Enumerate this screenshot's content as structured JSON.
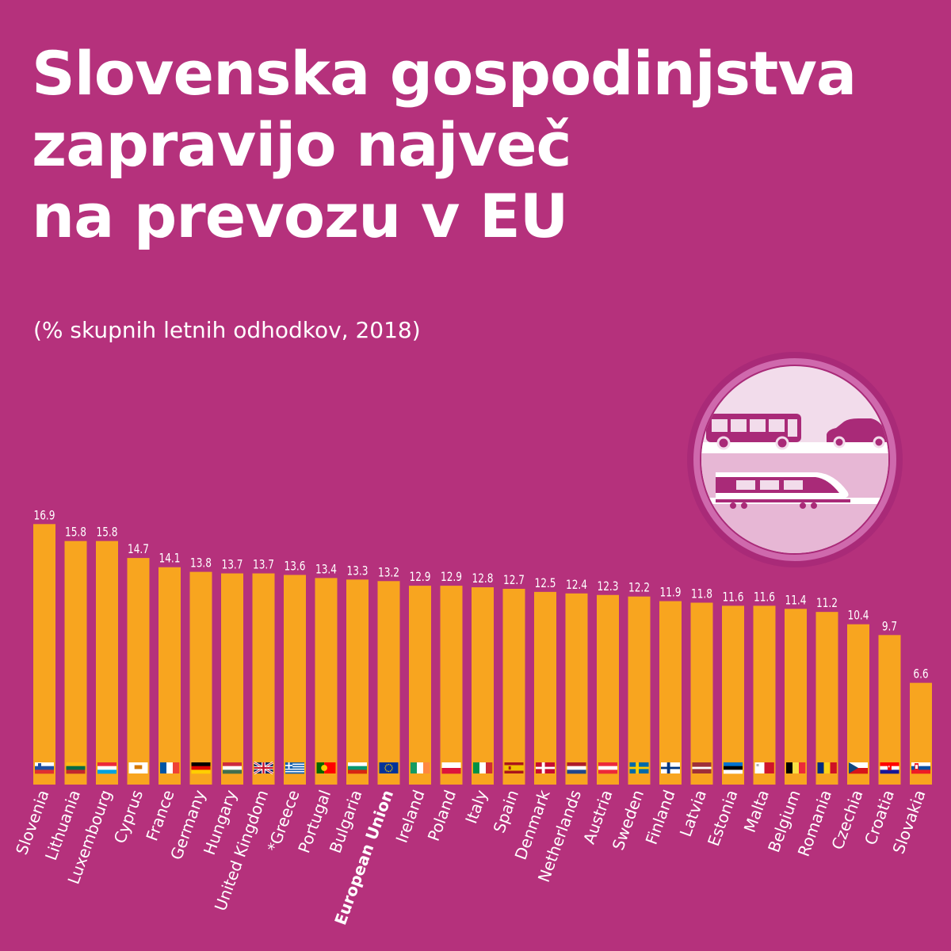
{
  "title_lines": [
    "Slovenska gospodinjstva",
    "zapravijo največ",
    "na prevozu v EU"
  ],
  "subtitle": "(% skupnih letnih odhodkov, 2018)",
  "colors": {
    "background": "#b5317c",
    "bar": "#f8a51f",
    "text": "#ffffff",
    "icon_light": "#f2dceb",
    "icon_mid": "#e7b7d5",
    "icon_dark": "#a92a78"
  },
  "icon": "bus-car-train-icon",
  "chart_data": {
    "type": "bar",
    "title": "Slovenska gospodinjstva zapravijo največ na prevozu v EU",
    "subtitle": "(% skupnih letnih odhodkov, 2018)",
    "xlabel": "",
    "ylabel": "",
    "ylim": [
      0,
      20
    ],
    "grid": false,
    "highlight": "European Union",
    "categories": [
      "Slovenia",
      "Lithuania",
      "Luxembourg",
      "Cyprus",
      "France",
      "Germany",
      "Hungary",
      "United Kingdom",
      "*Greece",
      "Portugal",
      "Bulgaria",
      "European Union",
      "Ireland",
      "Poland",
      "Italy",
      "Spain",
      "Denmark",
      "Netherlands",
      "Austria",
      "Sweden",
      "Finland",
      "Latvia",
      "Estonia",
      "Malta",
      "Belgium",
      "Romania",
      "Czechia",
      "Croatia",
      "Slovakia"
    ],
    "value_labels": [
      "16.9",
      "15.8",
      "15.8",
      "14.7",
      "14.1",
      "13.8",
      "13.7",
      "13.7",
      "13.6",
      "13.4",
      "13.3",
      "13.2",
      "12.9",
      "12.9",
      "12.8",
      "12.7",
      "12.5",
      "12.4",
      "12.3",
      "12.2",
      "11.9",
      "11.8",
      "11.6",
      "11.6",
      "11.4",
      "11.2",
      "10.4",
      "9.7",
      "6.6"
    ],
    "values": [
      16.9,
      15.8,
      15.8,
      14.7,
      14.1,
      13.8,
      13.7,
      13.7,
      13.6,
      13.4,
      13.3,
      13.2,
      12.9,
      12.9,
      12.8,
      12.7,
      12.5,
      12.4,
      12.3,
      12.2,
      11.9,
      11.8,
      11.6,
      11.6,
      11.4,
      11.2,
      10.4,
      9.7,
      6.6
    ],
    "flags": [
      "slovenia-flag-icon",
      "lithuania-flag-icon",
      "luxembourg-flag-icon",
      "cyprus-flag-icon",
      "france-flag-icon",
      "germany-flag-icon",
      "hungary-flag-icon",
      "united-kingdom-flag-icon",
      "greece-flag-icon",
      "portugal-flag-icon",
      "bulgaria-flag-icon",
      "european-union-flag-icon",
      "ireland-flag-icon",
      "poland-flag-icon",
      "italy-flag-icon",
      "spain-flag-icon",
      "denmark-flag-icon",
      "netherlands-flag-icon",
      "austria-flag-icon",
      "sweden-flag-icon",
      "finland-flag-icon",
      "latvia-flag-icon",
      "estonia-flag-icon",
      "malta-flag-icon",
      "belgium-flag-icon",
      "romania-flag-icon",
      "czechia-flag-icon",
      "croatia-flag-icon",
      "slovakia-flag-icon"
    ]
  }
}
